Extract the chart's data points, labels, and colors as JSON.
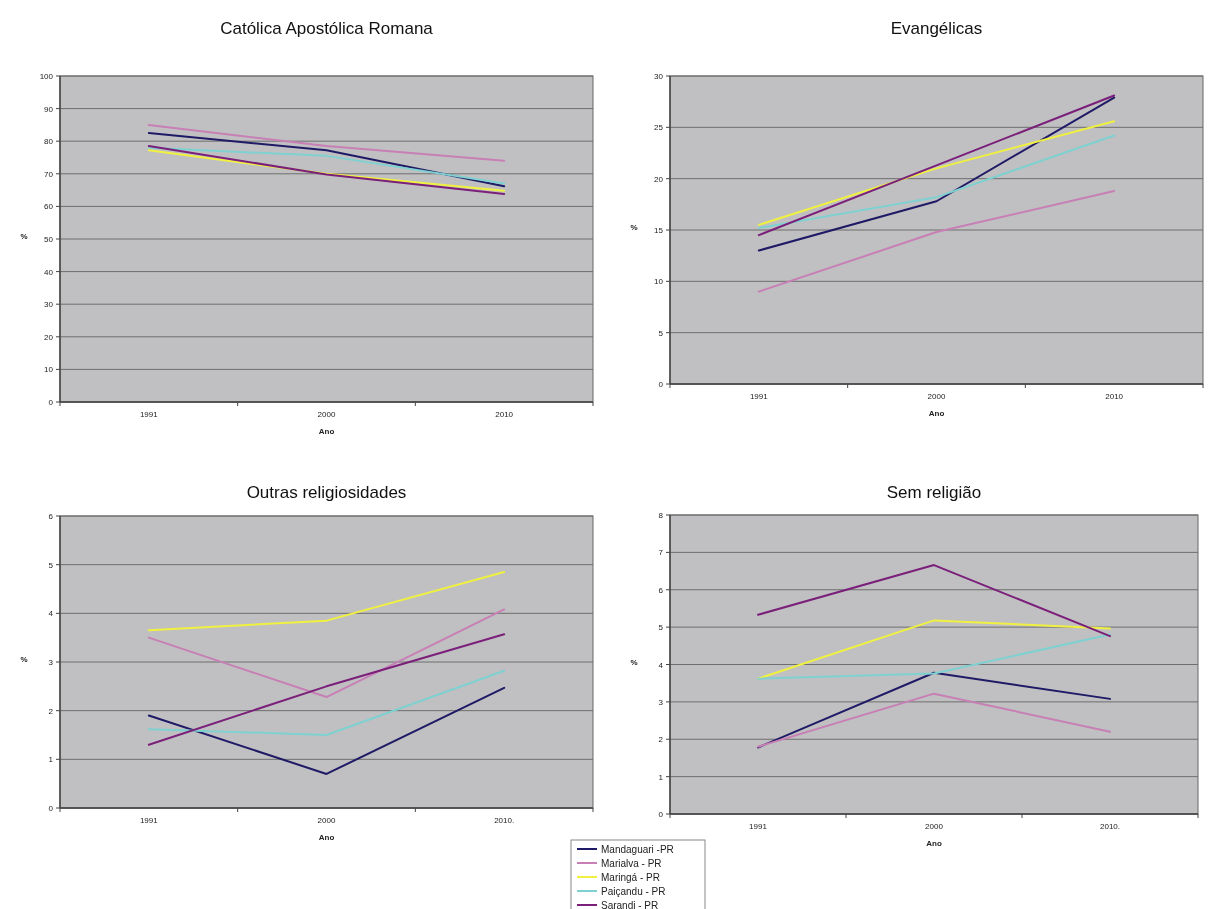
{
  "chart_data": [
    {
      "type": "line",
      "title": "Católica Apostólica Romana",
      "xlabel": "Ano",
      "ylabel": "%",
      "categories": [
        "1991",
        "2000",
        "2010"
      ],
      "ylim": [
        0,
        100
      ],
      "yticks": [
        0,
        10,
        20,
        30,
        40,
        50,
        60,
        70,
        80,
        90,
        100
      ],
      "grid": "y",
      "series": [
        {
          "color": "#1f1a66",
          "values": [
            82.5,
            77.2,
            66.2
          ]
        },
        {
          "color": "#c77fb5",
          "values": [
            85,
            78.5,
            74
          ]
        },
        {
          "color": "#f0f040",
          "values": [
            77.2,
            70,
            64.8
          ]
        },
        {
          "color": "#7fd0d0",
          "values": [
            78,
            75.5,
            67
          ]
        },
        {
          "color": "#7a1f7a",
          "values": [
            78.5,
            69.8,
            63.8
          ]
        }
      ]
    },
    {
      "type": "line",
      "title": "Evangélicas",
      "xlabel": "Ano",
      "ylabel": "%",
      "categories": [
        "1991",
        "2000",
        "2010"
      ],
      "ylim": [
        0,
        30
      ],
      "yticks": [
        0,
        5,
        10,
        15,
        20,
        25,
        30
      ],
      "grid": "y",
      "series": [
        {
          "color": "#1f1a66",
          "values": [
            13,
            17.8,
            27.9
          ]
        },
        {
          "color": "#c77fb5",
          "values": [
            9,
            14.8,
            18.8
          ]
        },
        {
          "color": "#f0f040",
          "values": [
            15.5,
            21,
            25.6
          ]
        },
        {
          "color": "#7fd0d0",
          "values": [
            15.2,
            18.2,
            24.2
          ]
        },
        {
          "color": "#7a1f7a",
          "values": [
            14.5,
            21.3,
            28.1
          ]
        }
      ]
    },
    {
      "type": "line",
      "title": "Outras religiosidades",
      "xlabel": "Ano",
      "ylabel": "%",
      "categories": [
        "1991",
        "2000",
        "2010."
      ],
      "ylim": [
        0,
        6
      ],
      "yticks": [
        0,
        1,
        2,
        3,
        4,
        5,
        6
      ],
      "grid": "y",
      "series": [
        {
          "color": "#1f1a66",
          "values": [
            1.9,
            0.7,
            2.47
          ]
        },
        {
          "color": "#c77fb5",
          "values": [
            3.5,
            2.28,
            4.08
          ]
        },
        {
          "color": "#f0f040",
          "values": [
            3.65,
            3.85,
            4.85
          ]
        },
        {
          "color": "#7fd0d0",
          "values": [
            1.62,
            1.5,
            2.82
          ]
        },
        {
          "color": "#7a1f7a",
          "values": [
            1.3,
            2.5,
            3.57
          ]
        }
      ]
    },
    {
      "type": "line",
      "title": "Sem religião",
      "xlabel": "Ano",
      "ylabel": "%",
      "categories": [
        "1991",
        "2000",
        "2010."
      ],
      "ylim": [
        0,
        8
      ],
      "yticks": [
        0,
        1,
        2,
        3,
        4,
        5,
        6,
        7,
        8
      ],
      "grid": "y",
      "legend": "bottom left",
      "series": [
        {
          "name": "Mandaguari -PR",
          "color": "#1f1a66",
          "values": [
            1.78,
            3.78,
            3.08
          ]
        },
        {
          "name": "Marialva - PR",
          "color": "#c77fb5",
          "values": [
            1.8,
            3.22,
            2.2
          ]
        },
        {
          "name": "Maringá - PR",
          "color": "#f0f040",
          "values": [
            3.62,
            5.18,
            4.96
          ]
        },
        {
          "name": "Paiçandu - PR",
          "color": "#7fd0d0",
          "values": [
            3.62,
            3.76,
            4.8
          ]
        },
        {
          "name": "Sarandi - PR",
          "color": "#7a1f7a",
          "values": [
            5.33,
            6.66,
            4.76
          ]
        }
      ]
    }
  ]
}
